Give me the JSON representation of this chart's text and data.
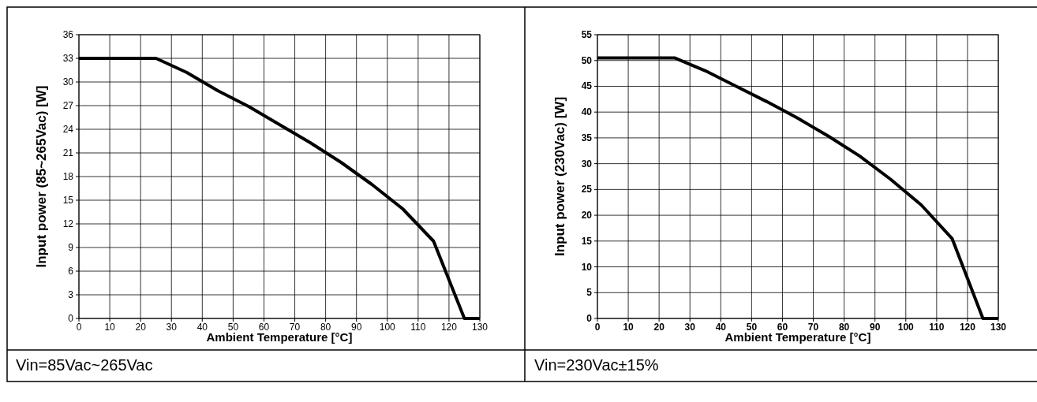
{
  "chart_data": [
    {
      "type": "line",
      "xlabel": "Ambient Temperature [°C]",
      "ylabel": "Input power (85~265Vac) [W]",
      "annotations": [
        "Vin=85Vac~265Vac"
      ],
      "x": [
        0,
        25,
        35,
        45,
        55,
        65,
        75,
        85,
        95,
        105,
        115,
        125,
        130
      ],
      "series": [
        {
          "color": "#000000",
          "values": [
            33,
            33,
            31.2,
            28.9,
            26.9,
            24.6,
            22.3,
            19.8,
            17,
            13.9,
            9.8,
            0,
            0
          ]
        }
      ],
      "xlim": [
        0,
        130
      ],
      "xticks": [
        0,
        10,
        20,
        30,
        40,
        50,
        60,
        70,
        80,
        90,
        100,
        110,
        120,
        130
      ],
      "ylim": [
        0,
        36
      ],
      "yticks": [
        0,
        3,
        6,
        9,
        12,
        15,
        18,
        21,
        24,
        27,
        30,
        33,
        36
      ],
      "grid": true,
      "marker": "none",
      "line_style": "solid"
    },
    {
      "type": "line",
      "xlabel": "Ambient Temperature [°C]",
      "ylabel": "Input power (230Vac) [W]",
      "annotations": [
        "Vin=230Vac±15%"
      ],
      "x": [
        0,
        25,
        35,
        45,
        55,
        65,
        75,
        85,
        95,
        105,
        115,
        125,
        130
      ],
      "series": [
        {
          "color": "#000000",
          "values": [
            50.5,
            50.5,
            48,
            45,
            42,
            38.8,
            35.3,
            31.5,
            27,
            22,
            15.5,
            0,
            0
          ]
        }
      ],
      "xlim": [
        0,
        130
      ],
      "xticks": [
        0,
        10,
        20,
        30,
        40,
        50,
        60,
        70,
        80,
        90,
        100,
        110,
        120,
        130
      ],
      "ylim": [
        0,
        55
      ],
      "yticks": [
        0,
        5,
        10,
        15,
        20,
        25,
        30,
        35,
        40,
        45,
        50,
        55
      ],
      "grid": true,
      "marker": "none",
      "line_style": "solid"
    }
  ]
}
